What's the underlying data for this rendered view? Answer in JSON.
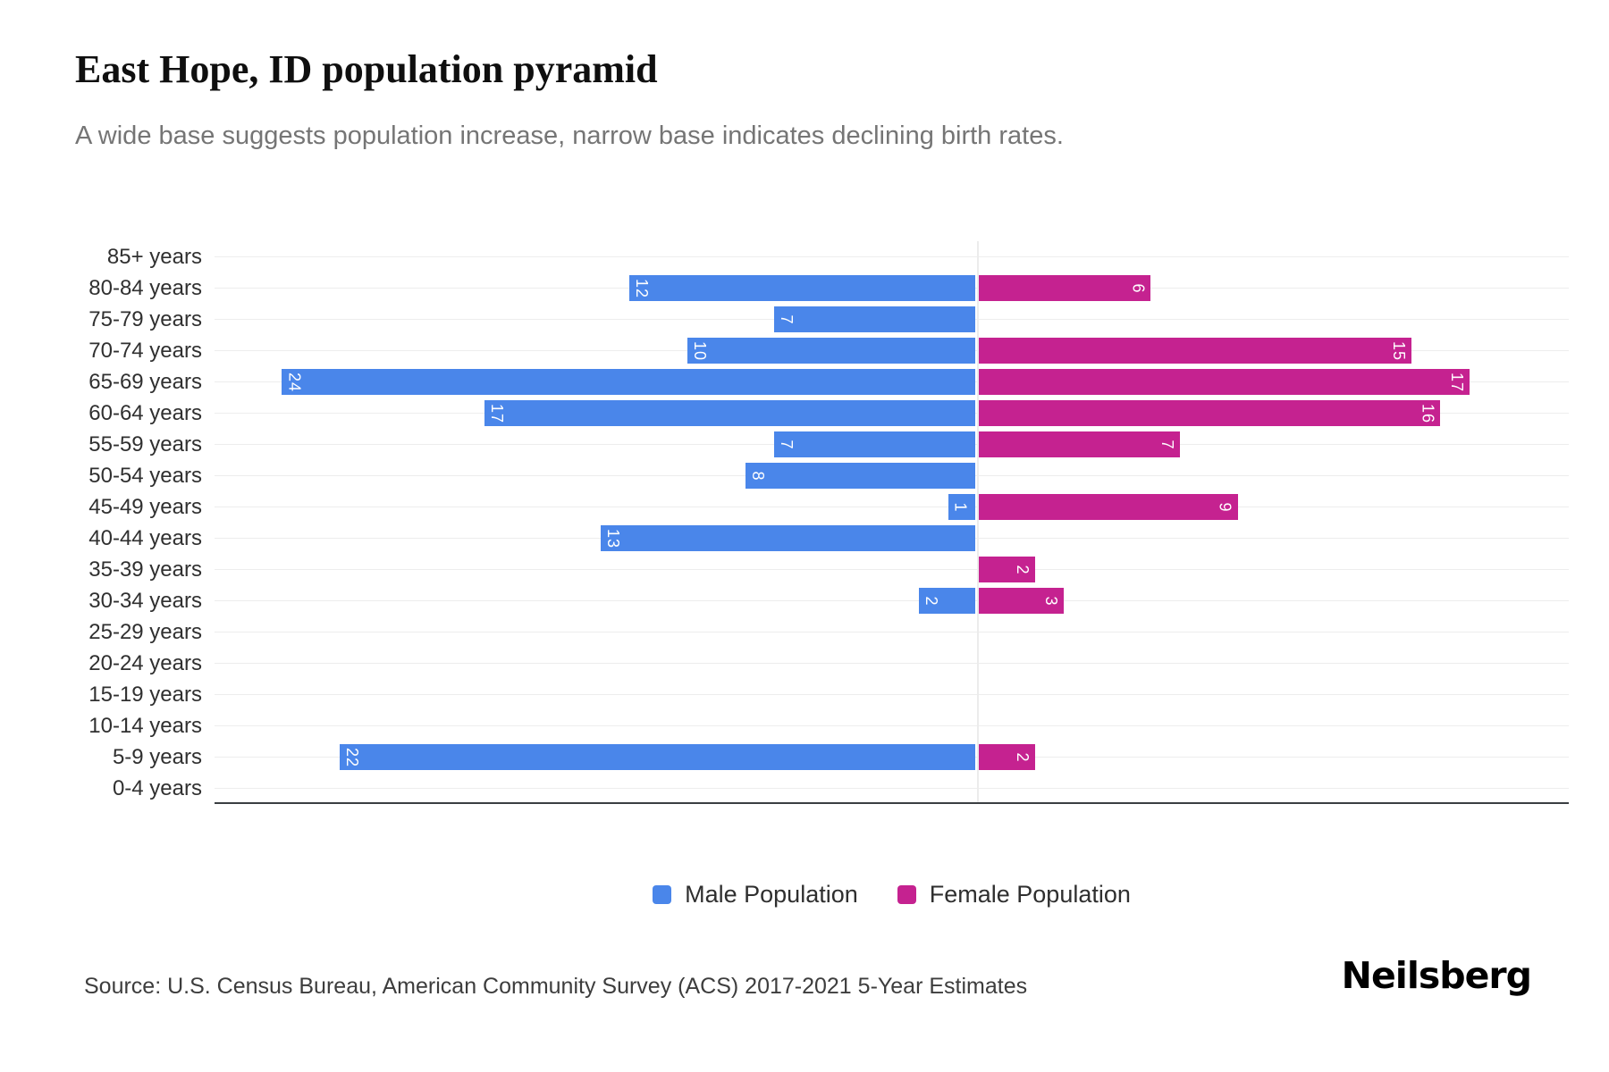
{
  "header": {
    "title": "East Hope, ID population pyramid",
    "subtitle": "A wide base suggests population increase, narrow base indicates declining birth rates."
  },
  "legend": {
    "male_label": "Male Population",
    "female_label": "Female Population"
  },
  "footer": {
    "source": "Source: U.S. Census Bureau, American Community Survey (ACS) 2017-2021 5-Year Estimates",
    "logo": "Neilsberg"
  },
  "chart_data": {
    "type": "bar",
    "subtype": "population-pyramid",
    "orientation": "horizontal",
    "title": "East Hope, ID population pyramid",
    "categories": [
      "85+ years",
      "80-84 years",
      "75-79 years",
      "70-74 years",
      "65-69 years",
      "60-64 years",
      "55-59 years",
      "50-54 years",
      "45-49 years",
      "40-44 years",
      "35-39 years",
      "30-34 years",
      "25-29 years",
      "20-24 years",
      "15-19 years",
      "10-14 years",
      "5-9 years",
      "0-4 years"
    ],
    "series": [
      {
        "name": "Male Population",
        "direction": "left",
        "color": "#4a86ea",
        "values": [
          0,
          12,
          7,
          10,
          24,
          17,
          7,
          8,
          1,
          13,
          0,
          2,
          0,
          0,
          0,
          0,
          22,
          0
        ]
      },
      {
        "name": "Female Population",
        "direction": "right",
        "color": "#c52290",
        "values": [
          0,
          6,
          0,
          15,
          17,
          16,
          7,
          0,
          9,
          0,
          2,
          3,
          0,
          0,
          0,
          0,
          2,
          0
        ]
      }
    ],
    "value_labels": "inside bar at outer end, rotated 90deg, white, hidden when value is 0",
    "xlim_left_max": 26,
    "xlim_right_max": 20,
    "grid": "light horizontal line at each category tick",
    "legend_position": "bottom-center",
    "colors": {
      "male": "#4a86ea",
      "female": "#c52290",
      "grid": "#ededed",
      "axis": "#3a3e42"
    }
  }
}
